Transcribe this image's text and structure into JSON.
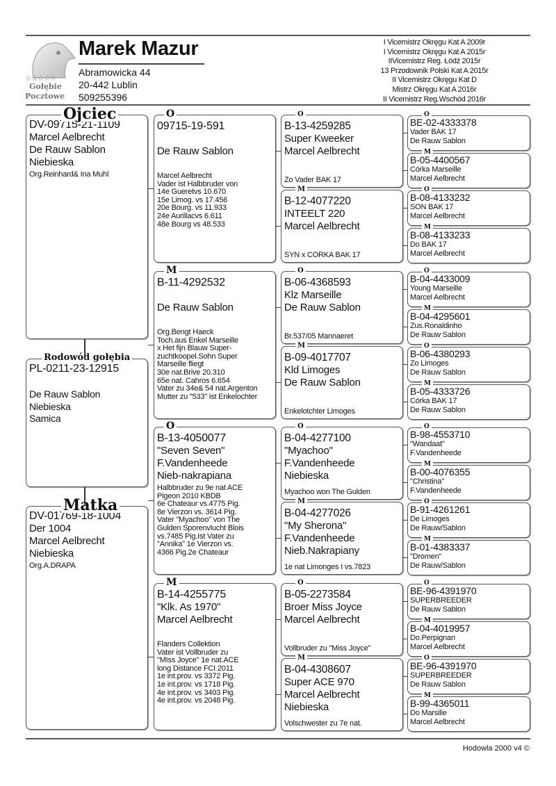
{
  "header": {
    "owner_name": "Marek Mazur",
    "address_line1": "Abramowicka 44",
    "address_line2": "20-442 Lublin",
    "phone": "509255396",
    "logo": {
      "stars": "☆☆☆☆☆",
      "text_line1": "Gołębie",
      "text_line2": "Pocztowe",
      "icon": "pigeon-head-icon"
    },
    "awards": [
      "I Vicemistrz Okręgu Kat A  2009r",
      "I Vicemistrz Okręgu Kat A  2015r",
      "IIVicemistrz Reg. Łódź 2015r",
      "13 Przodownik Polski Kat A 2015r",
      "II Vicemistrz Okręgu Kat D",
      "Mistrz Okręgu Kat A 2016r",
      "II Vicemistrz Reg.Wschód 2016r"
    ]
  },
  "gen1": [
    {
      "label": "Ojciec",
      "lines": [
        "DV-09715-21-1109",
        "Marcel Aelbrecht",
        "De Rauw Sablon",
        "Niebieska",
        "Org.Reinhard& Ina Muhl"
      ]
    },
    {
      "label": "Rodowód gołębia",
      "lines": [
        "PL-0211-23-12915",
        "",
        "De Rauw Sablon",
        "Niebieska",
        "Samica"
      ]
    },
    {
      "label": "Matka",
      "lines": [
        "DV-01769-18-1004",
        "Der 1004",
        "Marcel Aelbrecht",
        "Niebieska",
        "Org.A.DRAPA"
      ]
    }
  ],
  "gen2": [
    {
      "label": "O",
      "lines": [
        "09715-19-591",
        "",
        "De Rauw Sablon",
        ""
      ],
      "notes": [
        "Marcel Aelbrecht",
        "Vader ist Halbbruder von",
        "14e Gueretvs 10.670",
        "15e Limog. vs 17.456",
        "20e Bourg. vs  11.933",
        "24e Aurillacvs  6.611",
        "48e Bourg vs   48.533"
      ]
    },
    {
      "label": "M",
      "lines": [
        "B-11-4292532",
        "",
        "De Rauw Sablon",
        ""
      ],
      "notes": [
        "Org.Bengt Haeck",
        "Toch.aus Enkel Marseille",
        "x Het fijn Blauw Super-",
        "zuchtkoopel.Sohn Super",
        "Marseille fliegt",
        "30e nat.Brive 20.310",
        "65e nat. Cahros 6.654",
        "Vater zu 34e& 54 nat.Argenton",
        "Mutter zu \"533\" ist Enkelochter"
      ]
    },
    {
      "label": "O",
      "lines": [
        "B-13-4050077",
        "\"Seven Seven\"",
        "F.Vandenheede",
        "Nieb-nakrapiana"
      ],
      "notes": [
        "Halbbruder zu 9e nat ACE",
        "Pigeon 2010 KBDB",
        "6e Chateaur vs.4775 Pig.",
        "8e Vierzon vs. 3614 Pig.",
        "Vater \"Myachoo\" von The",
        "Gulden Sporenvlucht Blois",
        "vs.7485 Pig.Ist Vater zu",
        "\"Annika\" 1e Vierzon vs.",
        "4366 Pig.2e Chateaur"
      ]
    },
    {
      "label": "M",
      "lines": [
        "B-14-4255775",
        "\"Klk. As 1970\"",
        "Marcel Aelbrecht",
        ""
      ],
      "notes": [
        "Flanders Collektion",
        "Vater ist Vollbruder zu",
        "\"MIss Joyce\" 1e nat.ACE",
        "long Distance FCI 2011",
        "1e int.prov. vs 3372 Pig.",
        "1e int.prov. vs 1718 Pig.",
        "4e int.prov. vs 3403 Pig.",
        "4e int.prov. vs 2048 Pig."
      ]
    }
  ],
  "gen3": [
    {
      "label": "O",
      "lines": [
        "B-13-4259285",
        "Super Kweeker",
        "Marcel Aelbrecht",
        ""
      ],
      "note": "Zo Vader BAK 17"
    },
    {
      "label": "M",
      "lines": [
        "B-12-4077220",
        "INTEELT 220",
        "Marcel Aelbrecht",
        ""
      ],
      "note": "SYN x CÓRKA BAK 17"
    },
    {
      "label": "O",
      "lines": [
        "B-06-4368593",
        "Klz Marseille",
        "De Rauw Sablon",
        ""
      ],
      "note": "Br.537/05 Mannaeret"
    },
    {
      "label": "M",
      "lines": [
        "B-09-4017707",
        "Kld Limoges",
        "De Rauw Sablon",
        ""
      ],
      "note": "Enkelotchter Limoges"
    },
    {
      "label": "O",
      "lines": [
        "B-04-4277100",
        "\"Myachoo\"",
        "F.Vandenheede",
        "Niebieska"
      ],
      "note": "Myachoo won The Gulden"
    },
    {
      "label": "M",
      "lines": [
        "B-04-4277026",
        "\"My Sherona\"",
        "F.Vandenheede",
        "Nieb.Nakrapiany"
      ],
      "note": "1e nat Limonges I vs.7823"
    },
    {
      "label": "O",
      "lines": [
        "B-05-2273584",
        "Broer Miss Joyce",
        "Marcel Aelbrecht",
        ""
      ],
      "note": "Vollbruder zu \"Miss Joyce\""
    },
    {
      "label": "M",
      "lines": [
        "B-04-4308607",
        "Super ACE 970",
        "Marcel Aelbrecht",
        "Niebieska"
      ],
      "note": "Volschwester zu 7e nat."
    }
  ],
  "gen4": [
    {
      "label": "O",
      "lines": [
        "BE-02-4333378",
        "Vader BAK 17",
        "De Rauw Sablon"
      ]
    },
    {
      "label": "M",
      "lines": [
        "B-05-4400567",
        "Córka Marseille",
        "Marcel Aelbrecht"
      ]
    },
    {
      "label": "O",
      "lines": [
        "B-08-4133232",
        "SON BAK 17",
        "Marcel Aelbrecht"
      ]
    },
    {
      "label": "M",
      "lines": [
        "B-08-4133233",
        "Do BAK 17",
        "Marcel Aelbrecht"
      ]
    },
    {
      "label": "O",
      "lines": [
        "B-04-4433009",
        "Young Marseille",
        "Marcel Aelbrecht"
      ]
    },
    {
      "label": "M",
      "lines": [
        "B-04-4295601",
        "Zus.Ronaldinho",
        "De Rauw Sablon"
      ]
    },
    {
      "label": "O",
      "lines": [
        "B-06-4380293",
        "Zo Limoges",
        "De Rauw Sablon"
      ]
    },
    {
      "label": "M",
      "lines": [
        "B-05-4333726",
        "Córka BAK 17",
        "De Rauw Sablon"
      ]
    },
    {
      "label": "O",
      "lines": [
        "B-98-4553710",
        "\"Wandaat\"",
        "F.Vandenheede"
      ]
    },
    {
      "label": "M",
      "lines": [
        "B-00-4076355",
        "\"Christina\"",
        "F.Vandenheede"
      ]
    },
    {
      "label": "O",
      "lines": [
        "B-91-4261261",
        "De Limoges",
        "De Rauw/Sablon"
      ]
    },
    {
      "label": "M",
      "lines": [
        "B-01-4383337",
        "\"Dromen\"",
        "De Rauw/Sablon"
      ]
    },
    {
      "label": "O",
      "lines": [
        "BE-96-4391970",
        "SUPERBREEDER",
        "De Rauw Sablon"
      ]
    },
    {
      "label": "M",
      "lines": [
        "B-04-4019957",
        "Do.Perpignan",
        "Marcel Aelbrecht"
      ]
    },
    {
      "label": "O",
      "lines": [
        "BE-96-4391970",
        "SUPERBREEDER",
        "De Rauw Sablon"
      ]
    },
    {
      "label": "M",
      "lines": [
        "B-99-4365011",
        "Do Marsilie",
        "Marcel Aelbrecht"
      ]
    }
  ],
  "footer": {
    "text": "Hodowla 2000 v4 ©"
  }
}
